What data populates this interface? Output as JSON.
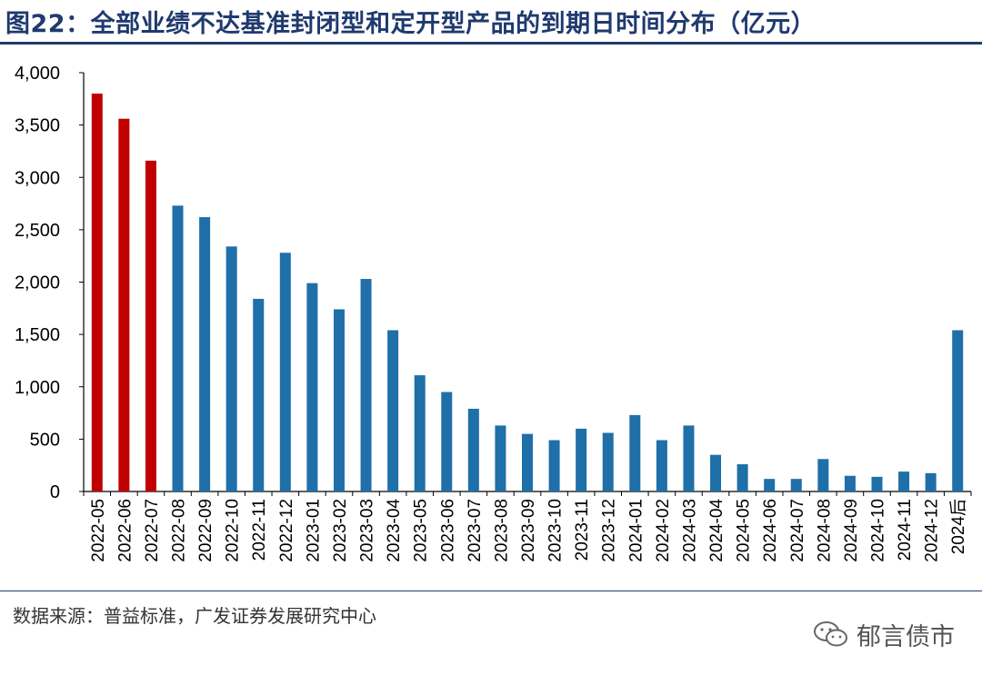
{
  "header": {
    "title": "图22：全部业绩不达基准封闭型和定开型产品的到期日时间分布（亿元）"
  },
  "chart_data": {
    "type": "bar",
    "title": "图22：全部业绩不达基准封闭型和定开型产品的到期日时间分布（亿元）",
    "categories": [
      "2022-05",
      "2022-06",
      "2022-07",
      "2022-08",
      "2022-09",
      "2022-10",
      "2022-11",
      "2022-12",
      "2023-01",
      "2023-02",
      "2023-03",
      "2023-04",
      "2023-05",
      "2023-06",
      "2023-07",
      "2023-08",
      "2023-09",
      "2023-10",
      "2023-11",
      "2023-12",
      "2024-01",
      "2024-02",
      "2024-03",
      "2024-04",
      "2024-05",
      "2024-06",
      "2024-07",
      "2024-08",
      "2024-09",
      "2024-10",
      "2024-11",
      "2024-12",
      "2024后"
    ],
    "values": [
      3800,
      3560,
      3160,
      2730,
      2620,
      2340,
      1840,
      2280,
      1990,
      1740,
      2030,
      1540,
      1110,
      950,
      790,
      630,
      550,
      490,
      600,
      560,
      730,
      490,
      630,
      350,
      260,
      120,
      120,
      310,
      150,
      140,
      190,
      175,
      1540
    ],
    "bar_colors": [
      "#c00000",
      "#c00000",
      "#c00000",
      "#1f6fa8",
      "#1f6fa8",
      "#1f6fa8",
      "#1f6fa8",
      "#1f6fa8",
      "#1f6fa8",
      "#1f6fa8",
      "#1f6fa8",
      "#1f6fa8",
      "#1f6fa8",
      "#1f6fa8",
      "#1f6fa8",
      "#1f6fa8",
      "#1f6fa8",
      "#1f6fa8",
      "#1f6fa8",
      "#1f6fa8",
      "#1f6fa8",
      "#1f6fa8",
      "#1f6fa8",
      "#1f6fa8",
      "#1f6fa8",
      "#1f6fa8",
      "#1f6fa8",
      "#1f6fa8",
      "#1f6fa8",
      "#1f6fa8",
      "#1f6fa8",
      "#1f6fa8",
      "#1f6fa8"
    ],
    "ylim": [
      0,
      4000
    ],
    "yticks": [
      "0",
      "500",
      "1,000",
      "1,500",
      "2,000",
      "2,500",
      "3,000",
      "3,500",
      "4,000"
    ],
    "xlabel": "",
    "ylabel": "",
    "grid": false,
    "legend": "none"
  },
  "footer": {
    "source": "数据来源：普益标准，广发证券发展研究中心",
    "watermark": "郁言债市",
    "watermark_icon": "wechat-icon"
  },
  "colors": {
    "title": "#1f3a6e",
    "highlight_bar": "#c00000",
    "bar": "#1f6fa8"
  }
}
